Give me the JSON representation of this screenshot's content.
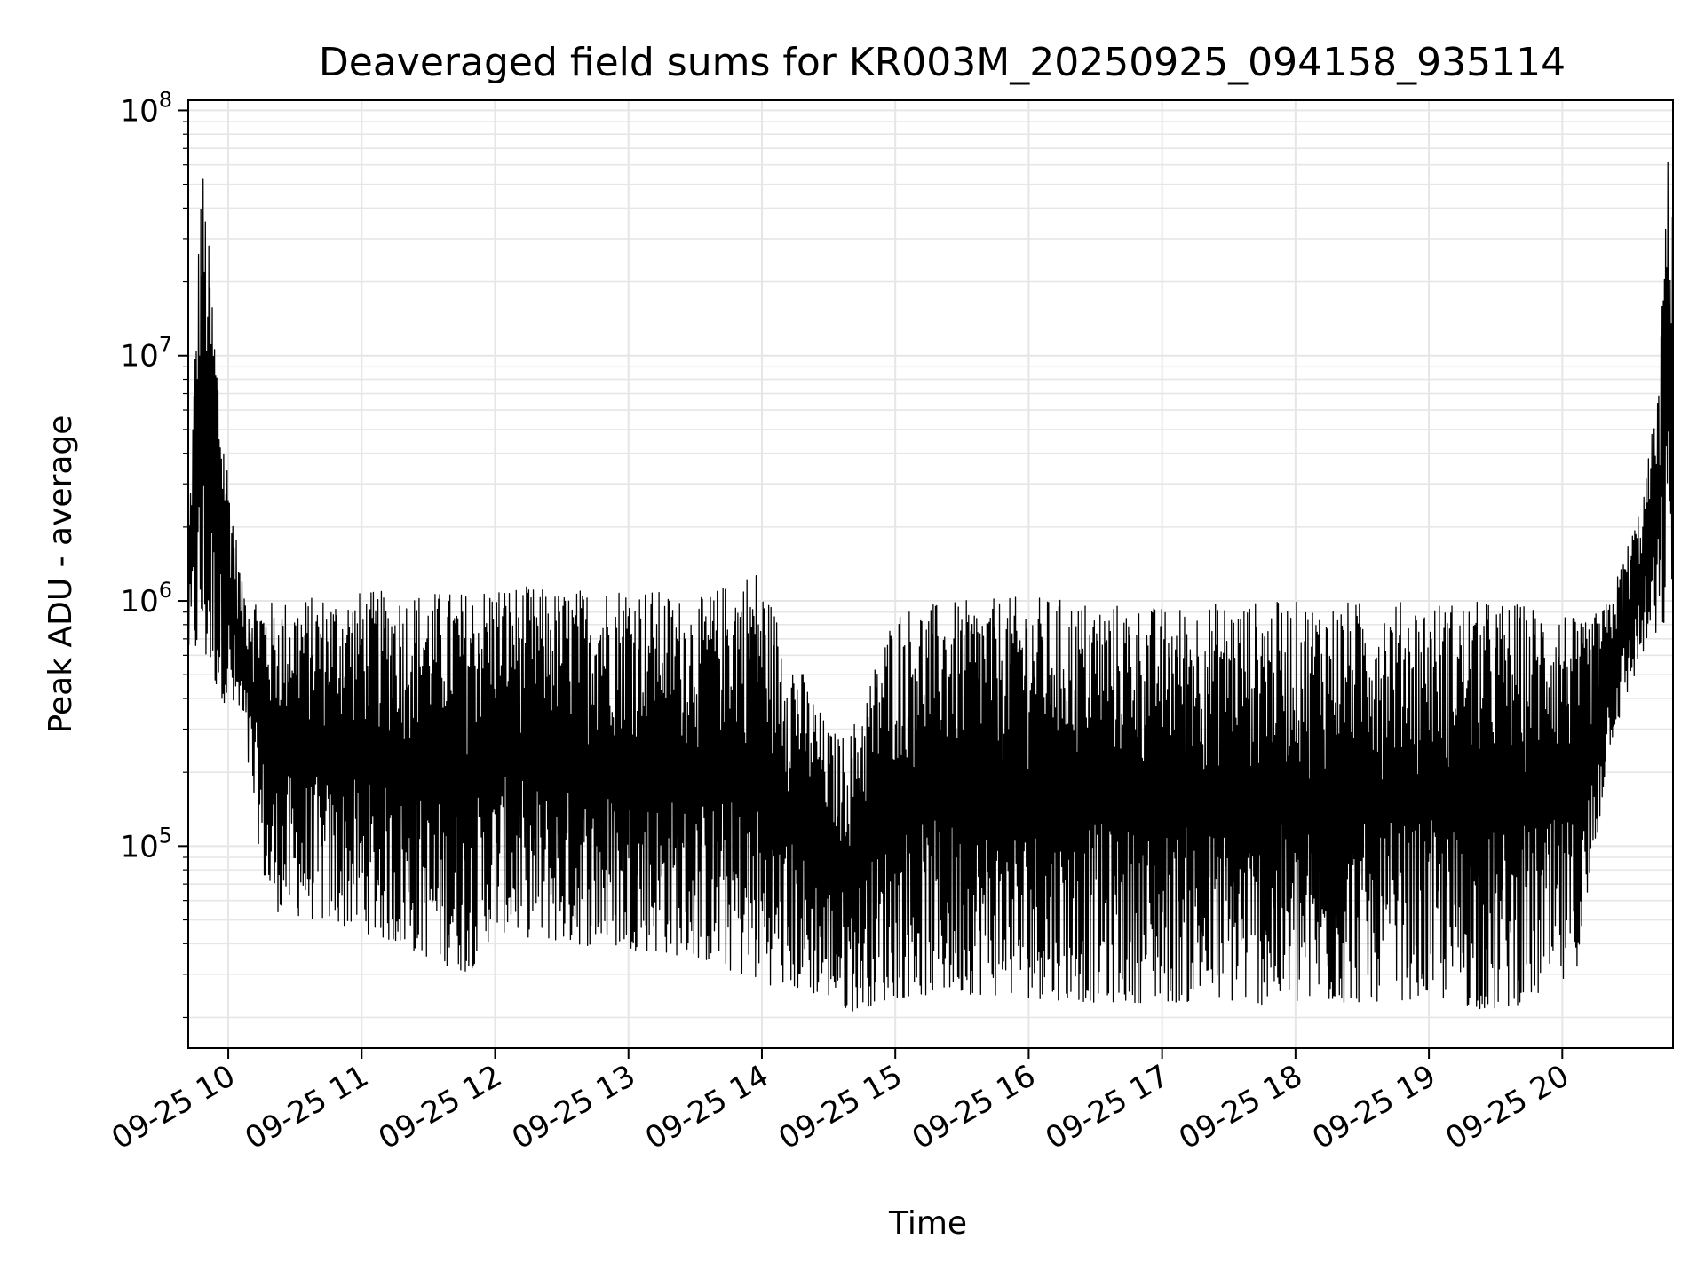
{
  "chart_data": {
    "type": "line",
    "title": "Deaveraged field sums for KR003M_20250925_094158_935114",
    "xlabel": "Time",
    "ylabel": "Peak ADU - average",
    "yscale": "log",
    "ylim": [
      15000,
      110000000
    ],
    "xlim_hours": [
      9.7,
      20.83
    ],
    "grid": true,
    "x_ticks": [
      {
        "hour": 10,
        "label": "09-25 10"
      },
      {
        "hour": 11,
        "label": "09-25 11"
      },
      {
        "hour": 12,
        "label": "09-25 12"
      },
      {
        "hour": 13,
        "label": "09-25 13"
      },
      {
        "hour": 14,
        "label": "09-25 14"
      },
      {
        "hour": 15,
        "label": "09-25 15"
      },
      {
        "hour": 16,
        "label": "09-25 16"
      },
      {
        "hour": 17,
        "label": "09-25 17"
      },
      {
        "hour": 18,
        "label": "09-25 18"
      },
      {
        "hour": 19,
        "label": "09-25 19"
      },
      {
        "hour": 20,
        "label": "09-25 20"
      }
    ],
    "y_ticks": [
      {
        "value": 100000,
        "base": "10",
        "exp": "5"
      },
      {
        "value": 1000000,
        "base": "10",
        "exp": "6"
      },
      {
        "value": 10000000,
        "base": "10",
        "exp": "7"
      },
      {
        "value": 100000000,
        "base": "10",
        "exp": "8"
      }
    ],
    "series": [
      {
        "name": "Peak ADU - average",
        "color": "#000000",
        "envelope": [
          {
            "hour": 9.7,
            "low": 600000,
            "high": 1700000
          },
          {
            "hour": 9.8,
            "low": 550000,
            "high": 70000000
          },
          {
            "hour": 9.95,
            "low": 400000,
            "high": 6000000
          },
          {
            "hour": 10.1,
            "low": 300000,
            "high": 1200000
          },
          {
            "hour": 10.3,
            "low": 55000,
            "high": 1000000
          },
          {
            "hour": 11.0,
            "low": 45000,
            "high": 1100000
          },
          {
            "hour": 11.8,
            "low": 30000,
            "high": 1100000
          },
          {
            "hour": 12.0,
            "low": 45000,
            "high": 1200000
          },
          {
            "hour": 12.5,
            "low": 40000,
            "high": 1100000
          },
          {
            "hour": 13.0,
            "low": 38000,
            "high": 1200000
          },
          {
            "hour": 13.5,
            "low": 35000,
            "high": 1000000
          },
          {
            "hour": 13.95,
            "low": 28000,
            "high": 1400000
          },
          {
            "hour": 14.5,
            "low": 24000,
            "high": 300000
          },
          {
            "hour": 14.65,
            "low": 21000,
            "high": 280000
          },
          {
            "hour": 15.0,
            "low": 24000,
            "high": 950000
          },
          {
            "hour": 15.5,
            "low": 25000,
            "high": 1000000
          },
          {
            "hour": 16.0,
            "low": 24000,
            "high": 1050000
          },
          {
            "hour": 16.5,
            "low": 23000,
            "high": 1000000
          },
          {
            "hour": 17.0,
            "low": 23000,
            "high": 950000
          },
          {
            "hour": 17.5,
            "low": 23000,
            "high": 1000000
          },
          {
            "hour": 18.0,
            "low": 22000,
            "high": 1000000
          },
          {
            "hour": 18.5,
            "low": 23000,
            "high": 1000000
          },
          {
            "hour": 19.0,
            "low": 24000,
            "high": 1000000
          },
          {
            "hour": 19.5,
            "low": 21000,
            "high": 1000000
          },
          {
            "hour": 20.0,
            "low": 26000,
            "high": 950000
          },
          {
            "hour": 20.15,
            "low": 35000,
            "high": 800000
          },
          {
            "hour": 20.35,
            "low": 250000,
            "high": 1000000
          },
          {
            "hour": 20.6,
            "low": 600000,
            "high": 2600000
          },
          {
            "hour": 20.73,
            "low": 700000,
            "high": 8000000
          },
          {
            "hour": 20.78,
            "low": 800000,
            "high": 70000000
          },
          {
            "hour": 20.83,
            "low": 1200000,
            "high": 50000000
          }
        ]
      }
    ]
  }
}
